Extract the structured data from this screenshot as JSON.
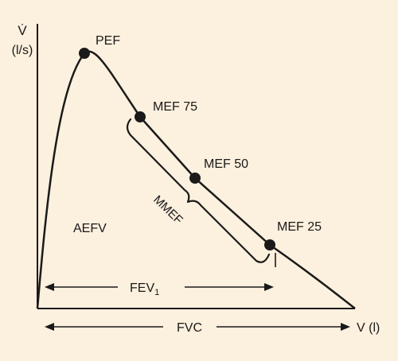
{
  "axes": {
    "y_symbol": "V̇",
    "y_unit": "(l/s)",
    "x_label": "V (l)"
  },
  "points": {
    "pef": "PEF",
    "mef75": "MEF 75",
    "mef50": "MEF 50",
    "mef25": "MEF 25"
  },
  "regions": {
    "aefv": "AEFV",
    "mmef": "MMEF"
  },
  "measures": {
    "fev_base": "FEV",
    "fev_sub": "1",
    "fvc": "FVC"
  },
  "colors": {
    "background": "#fcf0de",
    "ink": "#1a1a1a"
  }
}
